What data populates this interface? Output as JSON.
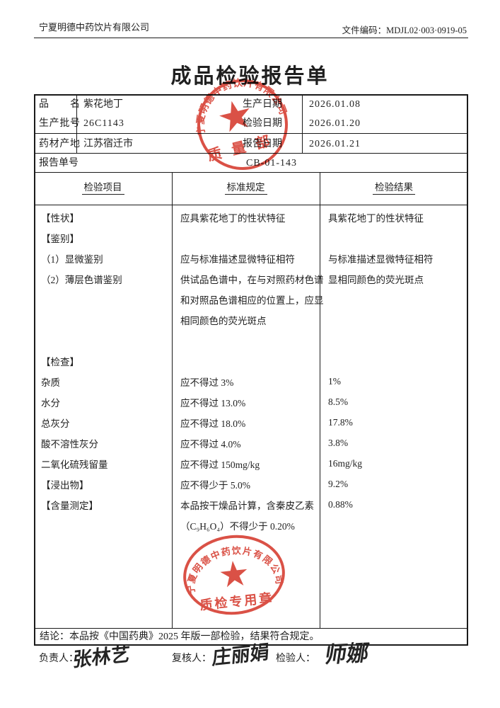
{
  "header": {
    "company": "宁夏明德中药饮片有限公司",
    "doc_code": "文件编码：MDJL02·003·0919-05"
  },
  "title": "成品检验报告单",
  "info": {
    "product_label": "品名",
    "product": "紫花地丁",
    "batch_label": "生产批号",
    "batch": "26C1143",
    "origin_label": "药材产地",
    "origin": "江苏宿迁市",
    "prod_date_label": "生产日期",
    "prod_date": "2026.01.08",
    "test_date_label": "检验日期",
    "test_date": "2026.01.20",
    "report_date_label": "报告日期",
    "report_date": "2026.01.21",
    "report_no_label": "报告单号",
    "report_no": "CB-01-143"
  },
  "table": {
    "col_headers": [
      "检验项目",
      "标准规定",
      "检验结果"
    ],
    "lines": [
      {
        "item": "【性状】",
        "standard": "应具紫花地丁的性状特征",
        "result": "具紫花地丁的性状特征"
      },
      {
        "item": "【鉴别】",
        "standard": "",
        "result": ""
      },
      {
        "item": "（1）显微鉴别",
        "standard": "应与标准描述显微特征相符",
        "result": "与标准描述显微特征相符"
      },
      {
        "item": "（2）薄层色谱鉴别",
        "standard": "供试品色谱中，在与对照药材色谱",
        "result": "显相同颜色的荧光斑点"
      },
      {
        "item": "",
        "standard": "和对照品色谱相应的位置上，应显",
        "result": ""
      },
      {
        "item": "",
        "standard": "相同颜色的荧光斑点",
        "result": ""
      },
      {
        "item": "",
        "standard": "",
        "result": ""
      },
      {
        "item": "【检查】",
        "standard": "",
        "result": ""
      },
      {
        "item": "杂质",
        "standard": "应不得过 3%",
        "result": "1%"
      },
      {
        "item": "水分",
        "standard": "应不得过 13.0%",
        "result": "8.5%"
      },
      {
        "item": "总灰分",
        "standard": "应不得过 18.0%",
        "result": "17.8%"
      },
      {
        "item": "酸不溶性灰分",
        "standard": "应不得过 4.0%",
        "result": "3.8%"
      },
      {
        "item": "二氧化硫残留量",
        "standard": "应不得过 150mg/kg",
        "result": "16mg/kg"
      },
      {
        "item": "【浸出物】",
        "standard": "应不得少于 5.0%",
        "result": "9.2%"
      },
      {
        "item": "【含量测定】",
        "standard": "本品按干燥品计算，含秦皮乙素",
        "result": "0.88%"
      },
      {
        "item": "",
        "standard": "（C₉H₆O₄）不得少于 0.20%",
        "result": ""
      }
    ]
  },
  "conclusion": "结论：本品按《中国药典》2025 年版一部检验，结果符合规定。",
  "signatures": {
    "resp_label": "负责人：",
    "resp_name": "张林艺",
    "review_label": "复核人：",
    "review_name": "庄丽娟",
    "inspect_label": "检验人：",
    "inspect_name": "师娜"
  },
  "stamps": {
    "color": "#d5392c",
    "quality_dept": {
      "company": "宁夏明德中药饮片有限公司",
      "dept": "质 量 部"
    },
    "qc_seal": {
      "company": "宁夏明德中药饮片有限公司",
      "label": "质检专用章"
    }
  }
}
